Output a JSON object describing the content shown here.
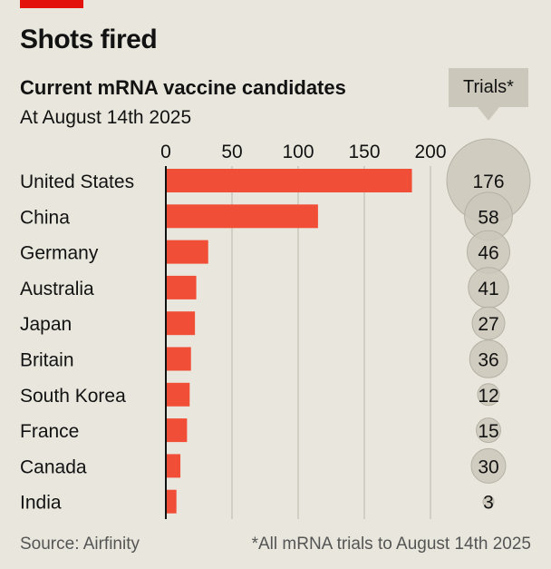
{
  "header": {
    "title": "Shots fired",
    "subtitle": "Current mRNA vaccine candidates",
    "dateline": "At August 14th 2025",
    "trials_label": "Trials*"
  },
  "footer": {
    "source": "Source: Airfinity",
    "footnote": "*All mRNA trials to August 14th 2025"
  },
  "colors": {
    "bar": "#f04e37",
    "bubble": "#cbc7bb",
    "bubble_edge": "#b5b1a6",
    "accent": "#e3120b",
    "grid": "#c9c6bb",
    "background": "#e9e7dd"
  },
  "chart_data": [
    {
      "type": "bar",
      "orientation": "horizontal",
      "title": "Current mRNA vaccine candidates",
      "subtitle": "At August 14th 2025",
      "categories": [
        "United States",
        "China",
        "Germany",
        "Australia",
        "Japan",
        "Britain",
        "South Korea",
        "France",
        "Canada",
        "India"
      ],
      "values": [
        186,
        115,
        32,
        23,
        22,
        19,
        18,
        16,
        11,
        8
      ],
      "xlim": [
        0,
        200
      ],
      "xticks": [
        "0",
        "50",
        "100",
        "150",
        "200"
      ],
      "grid": true,
      "legend": "none"
    },
    {
      "type": "scatter",
      "title": "Trials*",
      "categories": [
        "United States",
        "China",
        "Germany",
        "Australia",
        "Japan",
        "Britain",
        "South Korea",
        "France",
        "Canada",
        "India"
      ],
      "values": [
        176,
        58,
        46,
        41,
        27,
        36,
        12,
        15,
        30,
        3
      ],
      "labels": [
        "176",
        "58",
        "46",
        "41",
        "27",
        "36",
        "12",
        "15",
        "30",
        "3"
      ],
      "encoding": "bubble area proportional to value"
    }
  ]
}
